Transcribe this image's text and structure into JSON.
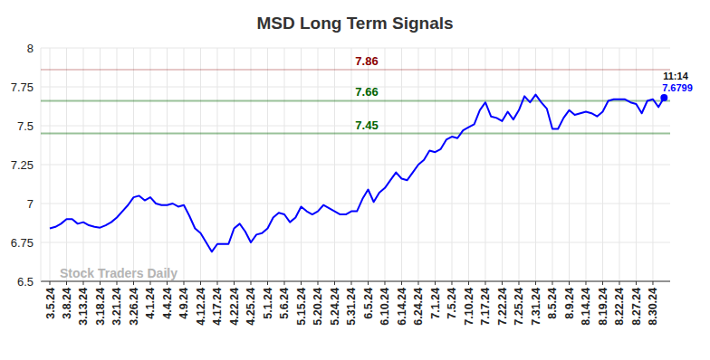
{
  "chart_data": {
    "type": "line",
    "title": "MSD Long Term Signals",
    "watermark": "Stock Traders Daily",
    "categories": [
      "3.5.24",
      null,
      null,
      "3.8.24",
      null,
      null,
      "3.13.24",
      null,
      null,
      "3.18.24",
      null,
      null,
      "3.21.24",
      null,
      null,
      "3.26.24",
      null,
      null,
      "4.1.24",
      null,
      null,
      "4.4.24",
      null,
      null,
      "4.9.24",
      null,
      null,
      "4.12.24",
      null,
      null,
      "4.17.24",
      null,
      null,
      "4.22.24",
      null,
      null,
      "4.25.24",
      null,
      null,
      "5.1.24",
      null,
      null,
      "5.6.24",
      null,
      null,
      "5.15.24",
      null,
      null,
      "5.20.24",
      null,
      null,
      "5.24.24",
      null,
      null,
      "5.31.24",
      null,
      null,
      "6.5.24",
      null,
      null,
      "6.10.24",
      null,
      null,
      "6.14.24",
      null,
      null,
      "6.24.24",
      null,
      null,
      "7.1.24",
      null,
      null,
      "7.5.24",
      null,
      null,
      "7.10.24",
      null,
      null,
      "7.17.24",
      null,
      null,
      "7.22.24",
      null,
      null,
      "7.25.24",
      null,
      null,
      "7.31.24",
      null,
      null,
      "8.5.24",
      null,
      null,
      "8.9.24",
      null,
      null,
      "8.14.24",
      null,
      null,
      "8.19.24",
      null,
      null,
      "8.22.24",
      null,
      null,
      "8.27.24",
      null,
      null,
      "8.30.24",
      null,
      null
    ],
    "values": [
      6.84,
      6.85,
      6.87,
      6.9,
      6.9,
      6.87,
      6.88,
      6.86,
      6.85,
      6.845,
      6.86,
      6.88,
      6.91,
      6.95,
      6.99,
      7.04,
      7.05,
      7.02,
      7.04,
      7.0,
      6.99,
      6.99,
      7.0,
      6.98,
      6.99,
      6.92,
      6.84,
      6.81,
      6.75,
      6.69,
      6.74,
      6.74,
      6.74,
      6.84,
      6.87,
      6.82,
      6.75,
      6.8,
      6.81,
      6.84,
      6.91,
      6.94,
      6.93,
      6.88,
      6.91,
      6.98,
      6.95,
      6.93,
      6.95,
      6.99,
      6.97,
      6.95,
      6.93,
      6.93,
      6.95,
      6.95,
      7.03,
      7.09,
      7.01,
      7.07,
      7.1,
      7.15,
      7.2,
      7.16,
      7.15,
      7.2,
      7.25,
      7.28,
      7.34,
      7.33,
      7.35,
      7.41,
      7.43,
      7.42,
      7.47,
      7.49,
      7.51,
      7.6,
      7.65,
      7.56,
      7.55,
      7.53,
      7.59,
      7.54,
      7.6,
      7.69,
      7.65,
      7.7,
      7.65,
      7.61,
      7.48,
      7.48,
      7.55,
      7.6,
      7.57,
      7.58,
      7.59,
      7.58,
      7.56,
      7.59,
      7.66,
      7.67,
      7.67,
      7.67,
      7.65,
      7.64,
      7.58,
      7.66,
      7.67,
      7.62,
      7.6799
    ],
    "color": "#0000ff",
    "ylim": [
      6.5,
      8
    ],
    "yticks": [
      6.5,
      6.75,
      7,
      7.25,
      7.5,
      7.75,
      8
    ],
    "grid": true,
    "reference_lines": [
      {
        "value": 7.86,
        "color": "#8b0000"
      },
      {
        "value": 7.66,
        "color": "#006400"
      },
      {
        "value": 7.45,
        "color": "#006400"
      }
    ],
    "last_point_time": "11:14"
  }
}
